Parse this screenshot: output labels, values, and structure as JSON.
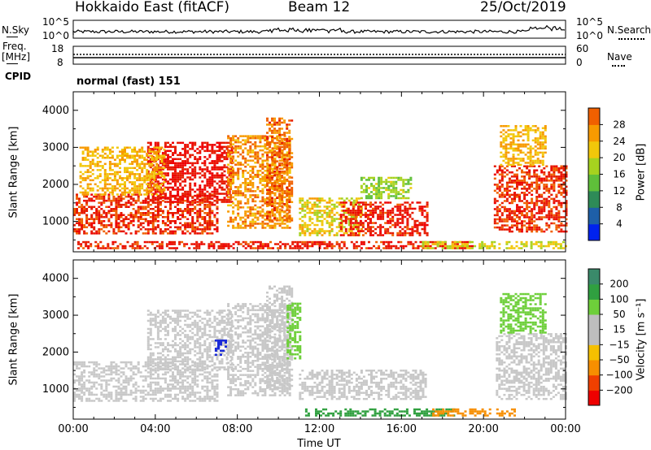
{
  "header": {
    "station": "Hokkaido East (fitACF)",
    "beam": "Beam 12",
    "date": "25/Oct/2019"
  },
  "strip": {
    "nsky_label": "N.Sky",
    "nsky_ticks": [
      "10^5",
      "10^0"
    ],
    "nsearch_ticks": [
      "10^5",
      "10^0"
    ],
    "nsearch_label": "N.Search",
    "freq_label": "Freq.",
    "freq_unit": "[MHz]",
    "freq_ticks": [
      "18",
      "8"
    ],
    "nave_ticks": [
      "60",
      "0"
    ],
    "nave_label": "Nave",
    "cpid_label": "CPID",
    "cpid_value": "normal (fast) 151"
  },
  "colors": {
    "power_scale": [
      "#0022ee",
      "#1e5fa8",
      "#2e8b57",
      "#5fbf3a",
      "#a6d21f",
      "#f2c70a",
      "#f79a00",
      "#f06000",
      "#e61a00",
      "#ee0000"
    ],
    "velocity_scale": [
      "#ee0000",
      "#f04000",
      "#f78f00",
      "#f5c000",
      "#bebebe",
      "#bebebe",
      "#6ecf3a",
      "#30a040",
      "#3a8a6a",
      "#1f3faa",
      "#1a2ad8"
    ],
    "frame": "#000000",
    "ground_velocity": "#c8c8c8"
  },
  "chart_data": [
    {
      "type": "heatmap",
      "panel": "power",
      "ylabel": "Slant Range [km]",
      "yticks": [
        "1000",
        "2000",
        "3000",
        "4000"
      ],
      "ylim": [
        180,
        4500
      ],
      "xticks": [
        "00:00",
        "04:00",
        "08:00",
        "12:00",
        "16:00",
        "20:00",
        "00:00"
      ],
      "xlim_hours": [
        0,
        24
      ],
      "colorbar_label": "Power [dB]",
      "colorbar_ticks": [
        "4",
        "8",
        "12",
        "16",
        "20",
        "24",
        "28"
      ],
      "colorbar_range": [
        0,
        30
      ],
      "regions": [
        {
          "t": [
            0.0,
            7.0
          ],
          "r": [
            650,
            1700
          ],
          "v": 25
        },
        {
          "t": [
            3.6,
            7.8
          ],
          "r": [
            1500,
            3100
          ],
          "v": 27
        },
        {
          "t": [
            7.5,
            10.5
          ],
          "r": [
            800,
            3300
          ],
          "v": 20
        },
        {
          "t": [
            9.4,
            10.7
          ],
          "r": [
            1000,
            3800
          ],
          "v": 22
        },
        {
          "t": [
            0.3,
            4.5
          ],
          "r": [
            1700,
            3000
          ],
          "v": 18
        },
        {
          "t": [
            11.0,
            14.0
          ],
          "r": [
            600,
            1600
          ],
          "v": 16
        },
        {
          "t": [
            13.0,
            17.2
          ],
          "r": [
            600,
            1500
          ],
          "v": 26
        },
        {
          "t": [
            14.0,
            16.5
          ],
          "r": [
            1600,
            2200
          ],
          "v": 13
        },
        {
          "t": [
            0.2,
            19.5
          ],
          "r": [
            250,
            450
          ],
          "v": 26
        },
        {
          "t": [
            17.0,
            24.0
          ],
          "r": [
            250,
            450
          ],
          "v": 15
        },
        {
          "t": [
            20.5,
            24.0
          ],
          "r": [
            700,
            2500
          ],
          "v": 25
        },
        {
          "t": [
            20.8,
            23.0
          ],
          "r": [
            2500,
            3600
          ],
          "v": 18
        }
      ]
    },
    {
      "type": "heatmap",
      "panel": "velocity",
      "ylabel": "Slant Range [km]",
      "yticks": [
        "1000",
        "2000",
        "3000",
        "4000"
      ],
      "ylim": [
        180,
        4500
      ],
      "xticks": [
        "00:00",
        "04:00",
        "08:00",
        "12:00",
        "16:00",
        "20:00",
        "00:00"
      ],
      "xlim_hours": [
        0,
        24
      ],
      "xlabel": "Time UT",
      "colorbar_label": "Velocity [m s⁻¹]",
      "colorbar_ticks": [
        "200",
        "100",
        "50",
        "15",
        "−15",
        "−50",
        "−100",
        "−200"
      ],
      "colorbar_range": [
        -250,
        250
      ],
      "regions": [
        {
          "t": [
            0.0,
            7.0
          ],
          "r": [
            650,
            1700
          ],
          "v": 0
        },
        {
          "t": [
            3.6,
            7.8
          ],
          "r": [
            1500,
            3100
          ],
          "v": 0
        },
        {
          "t": [
            7.5,
            10.5
          ],
          "r": [
            800,
            3300
          ],
          "v": 0
        },
        {
          "t": [
            9.4,
            10.7
          ],
          "r": [
            1000,
            3800
          ],
          "v": 10
        },
        {
          "t": [
            6.9,
            7.5
          ],
          "r": [
            1900,
            2300
          ],
          "v": 210
        },
        {
          "t": [
            10.4,
            11.0
          ],
          "r": [
            1800,
            3300
          ],
          "v": 40
        },
        {
          "t": [
            11.0,
            17.2
          ],
          "r": [
            700,
            1500
          ],
          "v": 0
        },
        {
          "t": [
            11.3,
            18.5
          ],
          "r": [
            250,
            450
          ],
          "v": 60
        },
        {
          "t": [
            17.5,
            21.5
          ],
          "r": [
            250,
            450
          ],
          "v": -60
        },
        {
          "t": [
            20.6,
            24.0
          ],
          "r": [
            700,
            2500
          ],
          "v": 0
        },
        {
          "t": [
            20.8,
            23.0
          ],
          "r": [
            2500,
            3600
          ],
          "v": 40
        }
      ]
    }
  ]
}
